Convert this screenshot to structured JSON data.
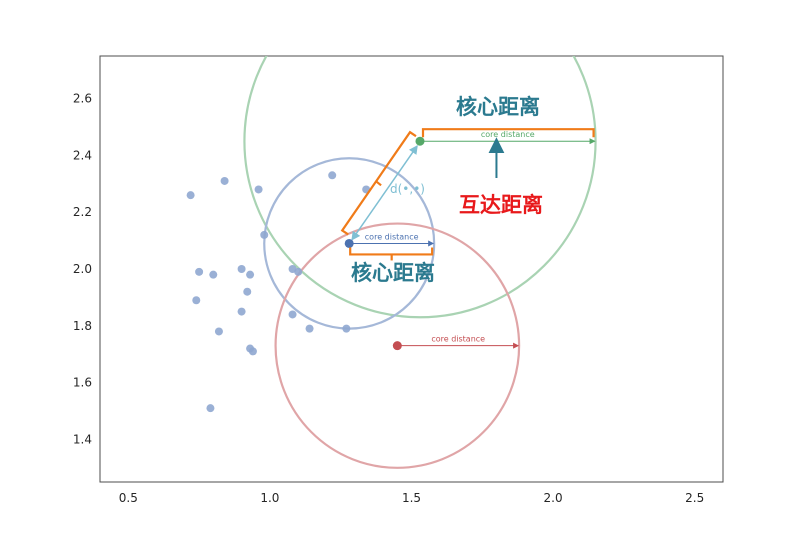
{
  "chart_data": {
    "type": "scatter",
    "xlim": [
      0.4,
      2.6
    ],
    "ylim": [
      1.25,
      2.75
    ],
    "xticks": [
      0.5,
      1.0,
      1.5,
      2.0,
      2.5
    ],
    "xtick_labels": [
      "0.5",
      "1.0",
      "1.5",
      "2.0",
      "2.5"
    ],
    "yticks": [
      1.4,
      1.6,
      1.8,
      2.0,
      2.2,
      2.4,
      2.6
    ],
    "ytick_labels": [
      "1.4",
      "1.6",
      "1.8",
      "2.0",
      "2.2",
      "2.4",
      "2.6"
    ],
    "grid": false,
    "points": [
      {
        "x": 0.72,
        "y": 2.26
      },
      {
        "x": 0.84,
        "y": 2.31
      },
      {
        "x": 0.96,
        "y": 2.28
      },
      {
        "x": 0.98,
        "y": 2.12
      },
      {
        "x": 0.75,
        "y": 1.99
      },
      {
        "x": 0.8,
        "y": 1.98
      },
      {
        "x": 0.9,
        "y": 2.0
      },
      {
        "x": 0.93,
        "y": 1.98
      },
      {
        "x": 0.92,
        "y": 1.92
      },
      {
        "x": 0.74,
        "y": 1.89
      },
      {
        "x": 0.9,
        "y": 1.85
      },
      {
        "x": 0.82,
        "y": 1.78
      },
      {
        "x": 0.93,
        "y": 1.72
      },
      {
        "x": 0.94,
        "y": 1.71
      },
      {
        "x": 0.79,
        "y": 1.51
      },
      {
        "x": 1.08,
        "y": 2.0
      },
      {
        "x": 1.1,
        "y": 1.99
      },
      {
        "x": 1.08,
        "y": 1.84
      },
      {
        "x": 1.14,
        "y": 1.79
      },
      {
        "x": 1.27,
        "y": 1.79
      },
      {
        "x": 1.22,
        "y": 2.33
      },
      {
        "x": 1.34,
        "y": 2.28
      }
    ],
    "highlights": {
      "blue": {
        "x": 1.28,
        "y": 2.09,
        "core_distance": 0.3,
        "color": "#4c72b0",
        "ring_color": "#a5b8d8"
      },
      "green": {
        "x": 1.53,
        "y": 2.45,
        "core_distance": 0.62,
        "color": "#55a868",
        "ring_color": "#a9d3b3"
      },
      "red": {
        "x": 1.45,
        "y": 1.73,
        "core_distance": 0.43,
        "color": "#c44e52",
        "ring_color": "#e0a5a7"
      }
    },
    "point_color": "#8fa7d0",
    "annotations": {
      "core_distance_label": "core distance",
      "core_distance_top": "核心距离",
      "core_distance_mid": "核心距离",
      "reachability": "互达距离",
      "distance_symbol": "d(•,•)"
    },
    "colors": {
      "core_text": "#2b7a8f",
      "reach_text": "#e8191b",
      "bracket": "#f07b19",
      "d_line": "#7fbfd3"
    }
  }
}
